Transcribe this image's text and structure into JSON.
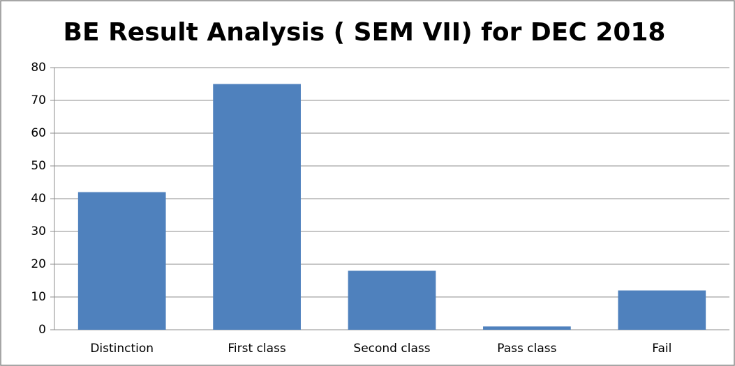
{
  "chart_data": {
    "type": "bar",
    "title": "BE Result Analysis ( SEM VII) for DEC 2018",
    "categories": [
      "Distinction",
      "First class",
      "Second class",
      "Pass class",
      "Fail"
    ],
    "values": [
      42,
      75,
      18,
      1,
      12
    ],
    "color": "#4f81bd",
    "ylim": [
      0,
      80
    ],
    "yticks": [
      0,
      10,
      20,
      30,
      40,
      50,
      60,
      70,
      80
    ],
    "grid": true
  }
}
